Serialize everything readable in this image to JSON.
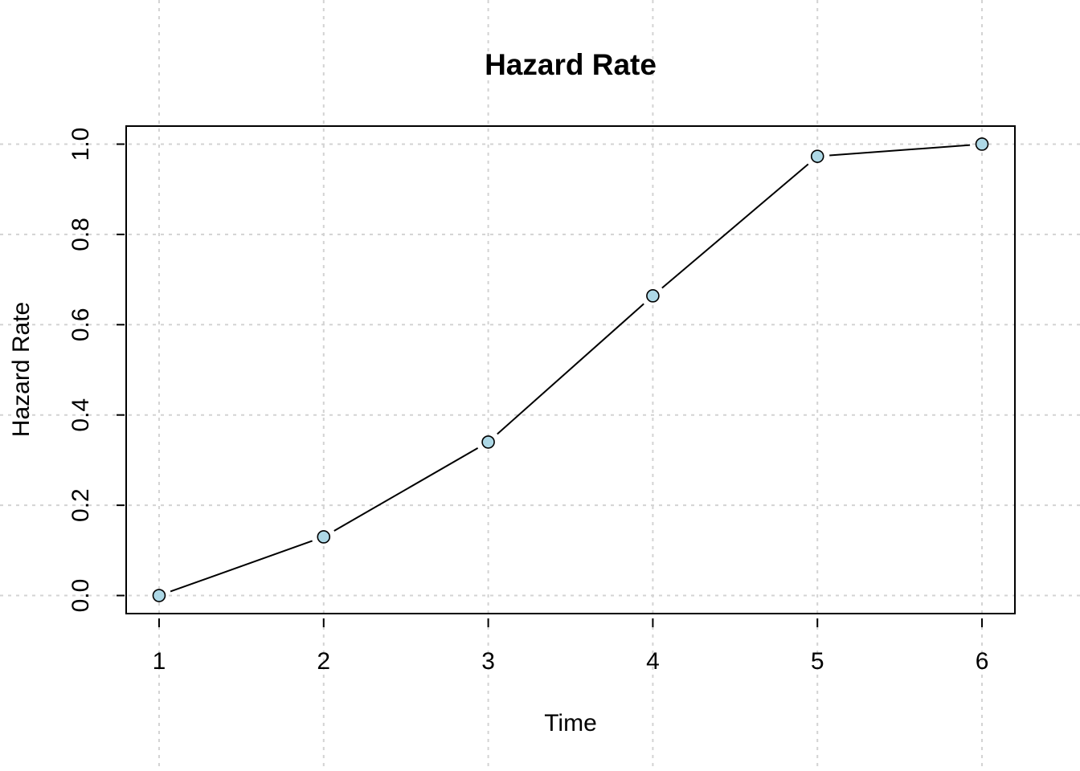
{
  "chart_data": {
    "type": "line",
    "title": "Hazard Rate",
    "xlabel": "Time",
    "ylabel": "Hazard Rate",
    "x": [
      1,
      2,
      3,
      4,
      5,
      6
    ],
    "series": [
      {
        "values": [
          0.0,
          0.13,
          0.34,
          0.664,
          0.973,
          1.0
        ]
      }
    ],
    "xlim": [
      0.8,
      6.2
    ],
    "ylim": [
      -0.04,
      1.04
    ],
    "xticks": [
      "1",
      "2",
      "3",
      "4",
      "5",
      "6"
    ],
    "yticks": [
      "0.0",
      "0.2",
      "0.4",
      "0.6",
      "0.8",
      "1.0"
    ],
    "grid": true,
    "line_type": "both (points joined by lines with gaps)",
    "colors": {
      "point_fill": "#add8e6",
      "point_stroke": "#000000",
      "line": "#000000",
      "grid": "#d3d3d3"
    }
  }
}
